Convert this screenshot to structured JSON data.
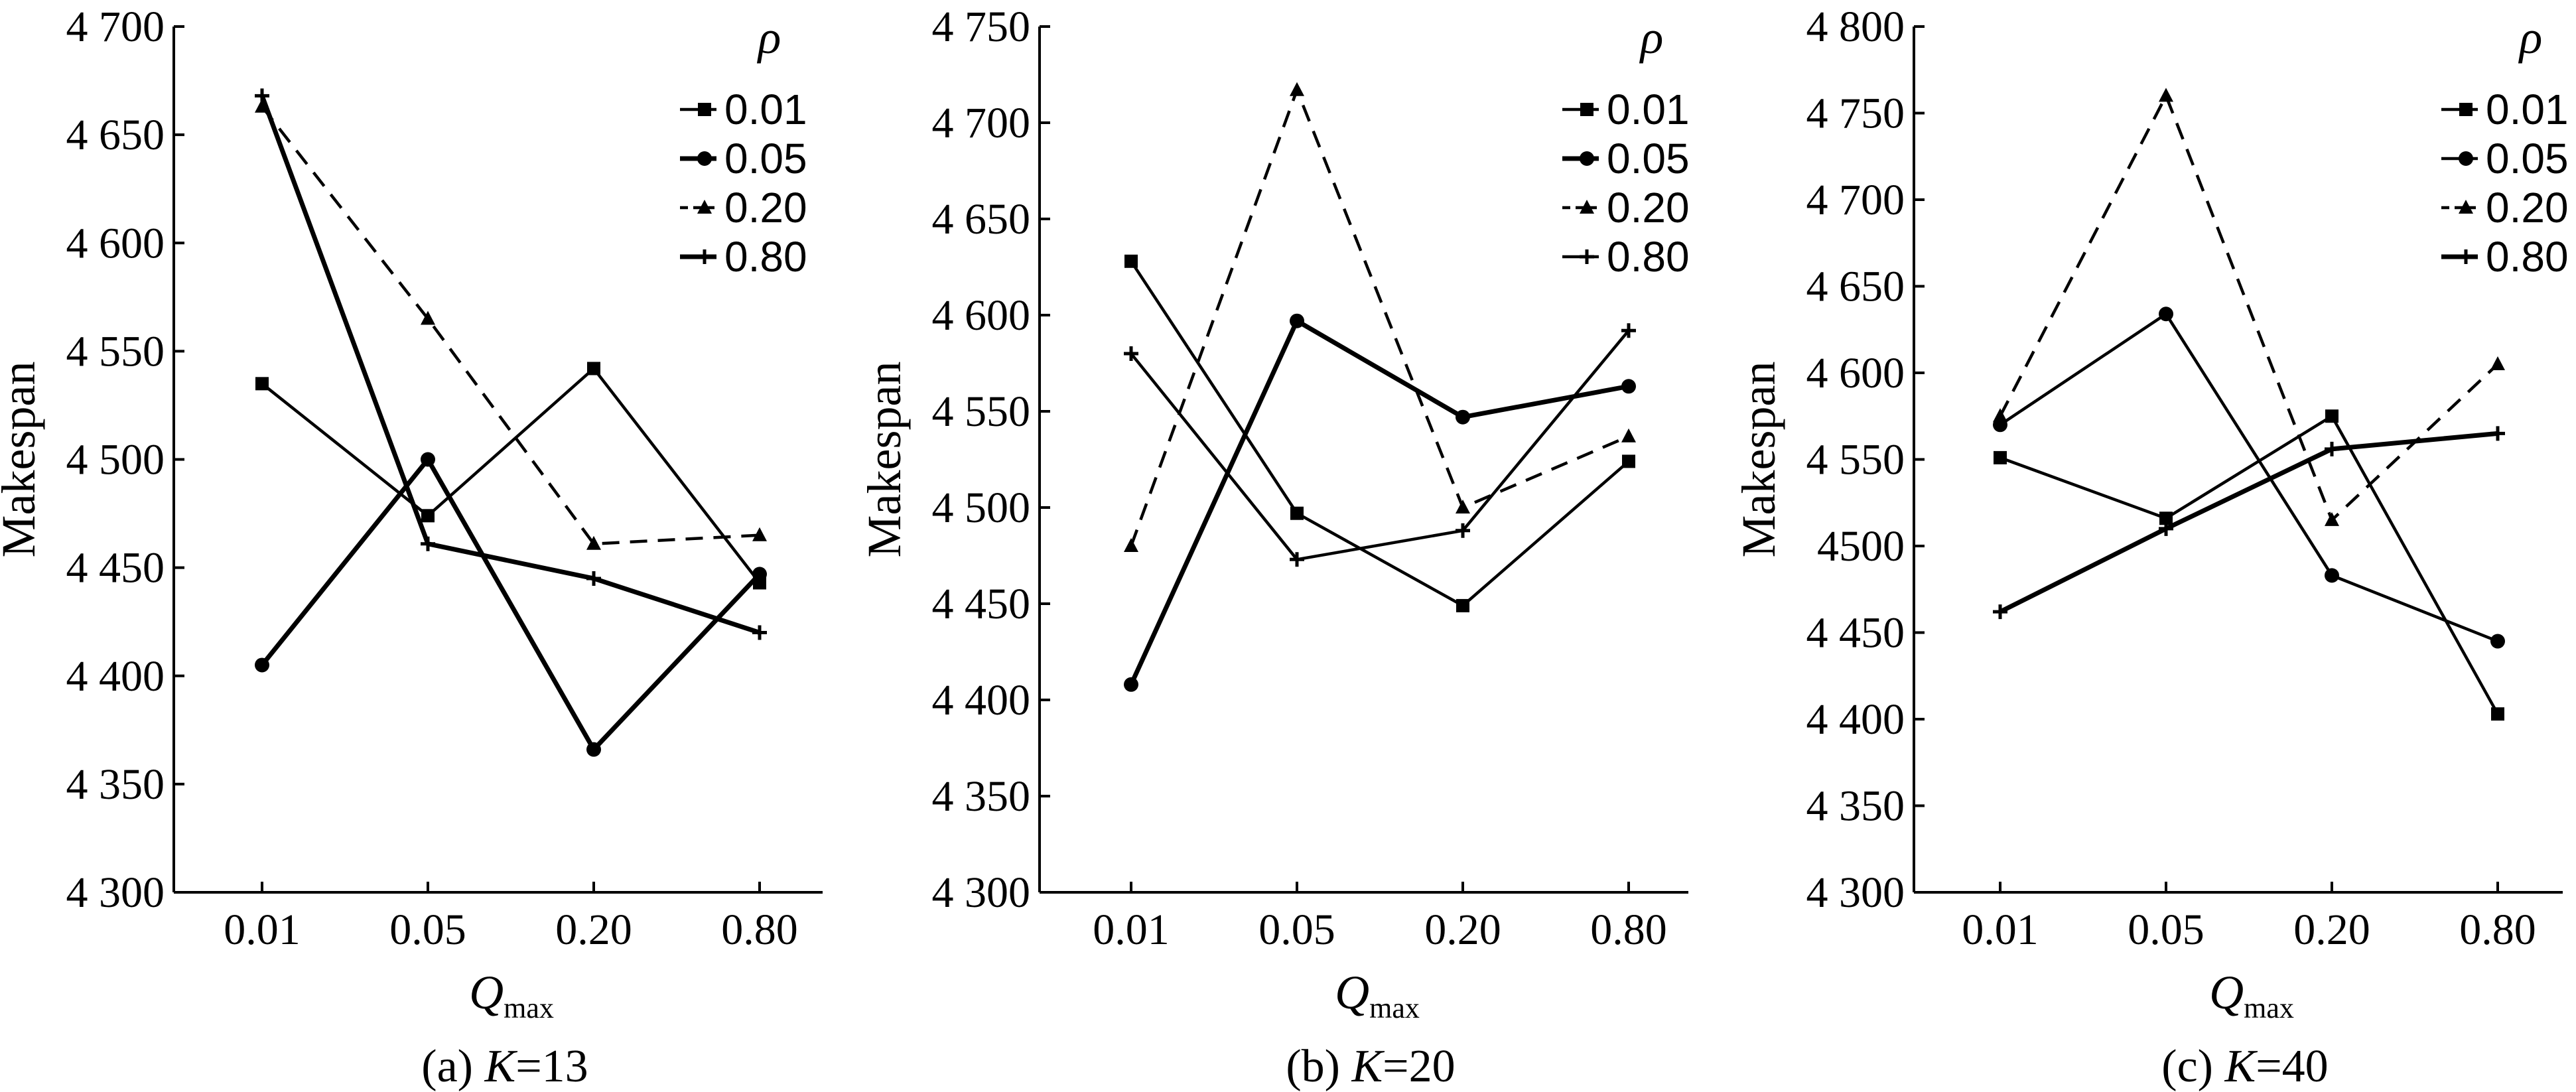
{
  "chart_data": [
    {
      "type": "line",
      "categories": [
        "0.01",
        "0.05",
        "0.20",
        "0.80"
      ],
      "ylabel": "Makespan",
      "xlabel": {
        "main": "Q",
        "sub": "max"
      },
      "ylim": [
        4300,
        4700
      ],
      "yticks": [
        4300,
        4350,
        4400,
        4450,
        4500,
        4550,
        4600,
        4650,
        4700
      ],
      "ytick_labels": [
        "4 300",
        "4 350",
        "4 400",
        "4 450",
        "4 500",
        "4 550",
        "4 600",
        "4 650",
        "4 700"
      ],
      "legend_title": "ρ",
      "caption": {
        "prefix": "(a) ",
        "var": "K",
        "suffix": "=13"
      },
      "series": [
        {
          "name": "0.01",
          "values": [
            4535,
            4474,
            4542,
            4443
          ],
          "marker": "square",
          "dash": "solid",
          "weight": "light"
        },
        {
          "name": "0.05",
          "values": [
            4405,
            4500,
            4366,
            4447
          ],
          "marker": "circle",
          "dash": "solid",
          "weight": "bold"
        },
        {
          "name": "0.20",
          "values": [
            4663,
            4565,
            4461,
            4465
          ],
          "marker": "triangle",
          "dash": "dashed",
          "weight": "light"
        },
        {
          "name": "0.80",
          "values": [
            4668,
            4461,
            4445,
            4420
          ],
          "marker": "plus",
          "dash": "solid",
          "weight": "bold"
        }
      ]
    },
    {
      "type": "line",
      "categories": [
        "0.01",
        "0.05",
        "0.20",
        "0.80"
      ],
      "ylabel": "Makespan",
      "xlabel": {
        "main": "Q",
        "sub": "max"
      },
      "ylim": [
        4300,
        4750
      ],
      "yticks": [
        4300,
        4350,
        4400,
        4450,
        4500,
        4550,
        4600,
        4650,
        4700,
        4750
      ],
      "ytick_labels": [
        "4 300",
        "4 350",
        "4 400",
        "4 450",
        "4 500",
        "4 550",
        "4 600",
        "4 650",
        "4 700",
        "4 750"
      ],
      "legend_title": "ρ",
      "caption": {
        "prefix": "(b) ",
        "var": "K",
        "suffix": "=20"
      },
      "series": [
        {
          "name": "0.01",
          "values": [
            4628,
            4497,
            4449,
            4524
          ],
          "marker": "square",
          "dash": "solid",
          "weight": "light"
        },
        {
          "name": "0.05",
          "values": [
            4408,
            4597,
            4547,
            4563
          ],
          "marker": "circle",
          "dash": "solid",
          "weight": "bold"
        },
        {
          "name": "0.20",
          "values": [
            4480,
            4717,
            4500,
            4537
          ],
          "marker": "triangle",
          "dash": "dashed",
          "weight": "light"
        },
        {
          "name": "0.80",
          "values": [
            4580,
            4473,
            4488,
            4592
          ],
          "marker": "plus",
          "dash": "solid",
          "weight": "light"
        }
      ]
    },
    {
      "type": "line",
      "categories": [
        "0.01",
        "0.05",
        "0.20",
        "0.80"
      ],
      "ylabel": "Makespan",
      "xlabel": {
        "main": "Q",
        "sub": "max"
      },
      "ylim": [
        4300,
        4800
      ],
      "yticks": [
        4300,
        4350,
        4400,
        4450,
        4500,
        4550,
        4600,
        4650,
        4700,
        4750,
        4800
      ],
      "ytick_labels": [
        "4 300",
        "4 350",
        "4 400",
        "4 450",
        "4500",
        "4 550",
        "4 600",
        "4 650",
        "4 700",
        "4 750",
        "4 800"
      ],
      "legend_title": "ρ",
      "caption": {
        "prefix": "(c) ",
        "var": "K",
        "suffix": "=40"
      },
      "series": [
        {
          "name": "0.01",
          "values": [
            4551,
            4516,
            4575,
            4403
          ],
          "marker": "square",
          "dash": "solid",
          "weight": "light"
        },
        {
          "name": "0.05",
          "values": [
            4570,
            4634,
            4483,
            4445
          ],
          "marker": "circle",
          "dash": "solid",
          "weight": "light"
        },
        {
          "name": "0.20",
          "values": [
            4575,
            4760,
            4515,
            4605
          ],
          "marker": "triangle",
          "dash": "dashed",
          "weight": "light"
        },
        {
          "name": "0.80",
          "values": [
            4462,
            4510,
            4556,
            4565
          ],
          "marker": "plus",
          "dash": "solid",
          "weight": "bold"
        }
      ]
    }
  ]
}
